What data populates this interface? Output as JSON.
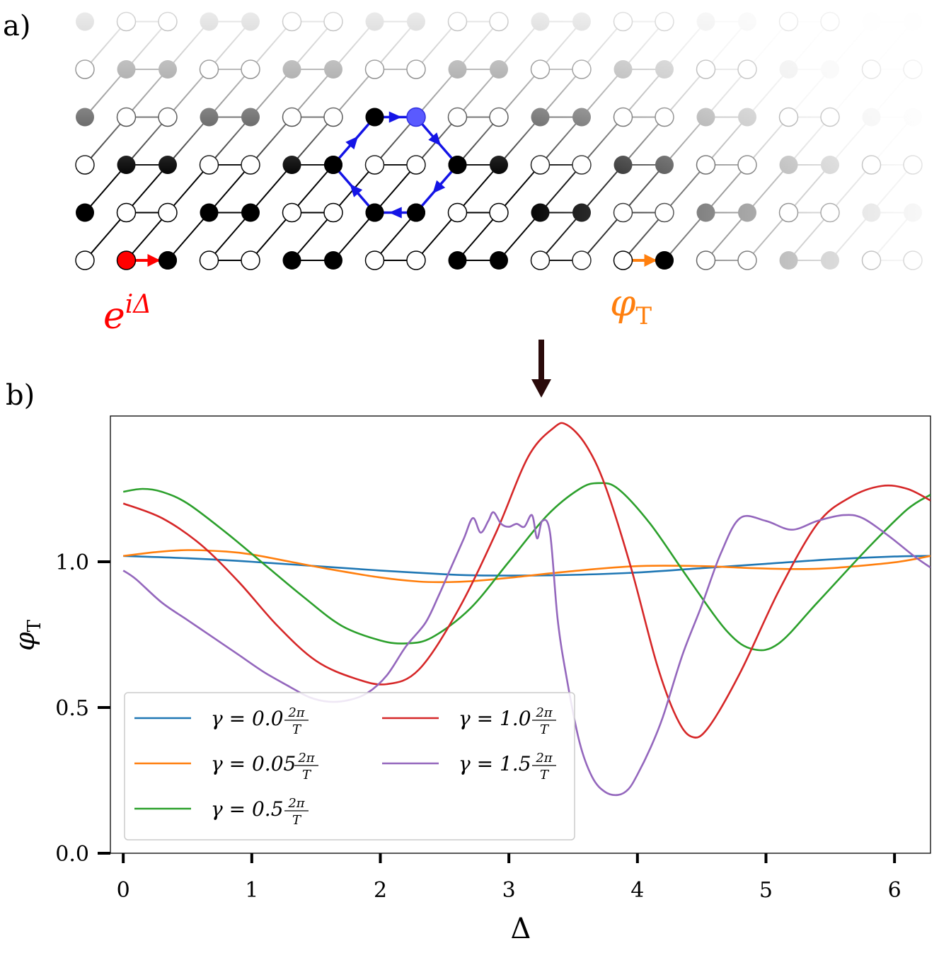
{
  "panel_a": {
    "label": "a)",
    "left_annotation": "e^{iΔ}",
    "left_annotation_base": "e",
    "left_annotation_sup": "iΔ",
    "right_annotation_base": "φ",
    "right_annotation_sub": "T",
    "colors": {
      "left_bond": "#ff0000",
      "right_bond": "#ff7f0e",
      "plaquette": "#1414e6"
    }
  },
  "panel_b": {
    "label": "b)"
  },
  "chart_data": {
    "type": "line",
    "xlabel": "Δ",
    "ylabel_base": "φ",
    "ylabel_sub": "T",
    "xlim": [
      -0.1,
      6.28
    ],
    "ylim": [
      0.0,
      1.5
    ],
    "xticks": [
      0,
      1,
      2,
      3,
      4,
      5,
      6
    ],
    "xtick_labels": [
      "0",
      "1",
      "2",
      "3",
      "4",
      "5",
      "6"
    ],
    "yticks": [
      0.0,
      0.5,
      1.0
    ],
    "ytick_labels": [
      "0.0",
      "0.5",
      "1.0"
    ],
    "grid": false,
    "legend_placement": "lower-left",
    "legend_columns": 2,
    "series": [
      {
        "name": "γ = 0.0 2π/T",
        "legend_prefix": "γ = 0.0",
        "color": "#1f77b4",
        "x": [
          0,
          0.5,
          1,
          1.5,
          2,
          2.5,
          2.8,
          3.2,
          3.5,
          4,
          4.5,
          5,
          5.5,
          6,
          6.28
        ],
        "y": [
          1.02,
          1.012,
          1.0,
          0.985,
          0.97,
          0.957,
          0.953,
          0.953,
          0.955,
          0.963,
          0.978,
          0.993,
          1.008,
          1.018,
          1.02
        ]
      },
      {
        "name": "γ = 0.05 2π/T",
        "legend_prefix": "γ = 0.05",
        "color": "#ff7f0e",
        "x": [
          0,
          0.25,
          0.5,
          0.8,
          1,
          1.3,
          1.6,
          2,
          2.3,
          2.5,
          2.7,
          3,
          3.5,
          4,
          4.5,
          4.9,
          5.2,
          5.5,
          6,
          6.28
        ],
        "y": [
          1.02,
          1.033,
          1.04,
          1.035,
          1.025,
          1.0,
          0.975,
          0.946,
          0.932,
          0.93,
          0.933,
          0.945,
          0.968,
          0.985,
          0.985,
          0.978,
          0.975,
          0.978,
          0.998,
          1.02
        ]
      },
      {
        "name": "γ = 0.5 2π/T",
        "legend_prefix": "γ = 0.5",
        "color": "#2ca02c",
        "x": [
          0,
          0.15,
          0.3,
          0.5,
          0.8,
          1.1,
          1.4,
          1.7,
          2.0,
          2.2,
          2.4,
          2.7,
          3.0,
          3.3,
          3.55,
          3.7,
          3.85,
          4.1,
          4.4,
          4.7,
          4.9,
          5.1,
          5.4,
          5.8,
          6.1,
          6.28
        ],
        "y": [
          1.24,
          1.25,
          1.24,
          1.2,
          1.1,
          0.99,
          0.88,
          0.78,
          0.73,
          0.72,
          0.74,
          0.84,
          1.0,
          1.16,
          1.25,
          1.27,
          1.25,
          1.13,
          0.94,
          0.76,
          0.7,
          0.72,
          0.86,
          1.05,
          1.18,
          1.23
        ]
      },
      {
        "name": "γ = 1.0 2π/T",
        "legend_prefix": "γ = 1.0",
        "color": "#d62728",
        "x": [
          0,
          0.3,
          0.6,
          0.9,
          1.2,
          1.5,
          1.8,
          2.05,
          2.3,
          2.6,
          2.9,
          3.15,
          3.35,
          3.45,
          3.6,
          3.75,
          3.95,
          4.15,
          4.3,
          4.42,
          4.55,
          4.8,
          5.1,
          5.4,
          5.65,
          5.9,
          6.1,
          6.28
        ],
        "y": [
          1.2,
          1.15,
          1.06,
          0.93,
          0.78,
          0.66,
          0.6,
          0.58,
          0.63,
          0.83,
          1.1,
          1.36,
          1.46,
          1.47,
          1.4,
          1.26,
          0.98,
          0.65,
          0.47,
          0.4,
          0.43,
          0.62,
          0.9,
          1.13,
          1.22,
          1.26,
          1.25,
          1.21
        ]
      },
      {
        "name": "γ = 1.5 2π/T",
        "legend_prefix": "γ = 1.5",
        "color": "#9467bd",
        "x": [
          0,
          0.1,
          0.3,
          0.5,
          0.7,
          0.9,
          1.1,
          1.3,
          1.45,
          1.6,
          1.75,
          1.9,
          2.05,
          2.2,
          2.35,
          2.45,
          2.55,
          2.65,
          2.72,
          2.78,
          2.84,
          2.88,
          2.94,
          3.0,
          3.06,
          3.12,
          3.18,
          3.22,
          3.26,
          3.32,
          3.38,
          3.45,
          3.55,
          3.65,
          3.75,
          3.85,
          3.93,
          4.0,
          4.1,
          4.2,
          4.35,
          4.5,
          4.65,
          4.8,
          5.0,
          5.2,
          5.4,
          5.6,
          5.75,
          5.95,
          6.15,
          6.28
        ],
        "y": [
          0.97,
          0.94,
          0.86,
          0.8,
          0.74,
          0.68,
          0.62,
          0.57,
          0.535,
          0.52,
          0.525,
          0.55,
          0.61,
          0.71,
          0.79,
          0.88,
          0.98,
          1.08,
          1.15,
          1.1,
          1.14,
          1.17,
          1.13,
          1.12,
          1.13,
          1.12,
          1.16,
          1.08,
          1.14,
          1.1,
          0.8,
          0.6,
          0.38,
          0.26,
          0.21,
          0.2,
          0.22,
          0.27,
          0.36,
          0.47,
          0.68,
          0.85,
          1.03,
          1.15,
          1.14,
          1.11,
          1.14,
          1.16,
          1.15,
          1.09,
          1.02,
          0.98
        ]
      }
    ]
  }
}
